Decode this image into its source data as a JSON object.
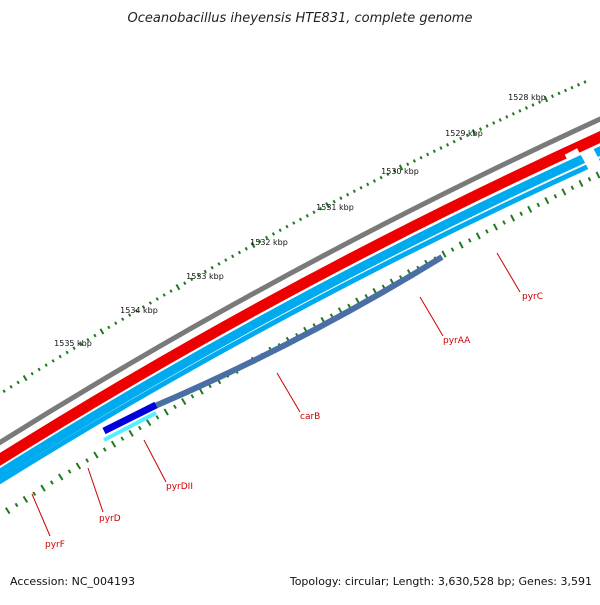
{
  "title": "Oceanobacillus iheyensis HTE831, complete genome",
  "accession_text": "Accession: NC_004193",
  "summary_text": "Topology: circular; Length: 3,630,528 bp; Genes: 3,591",
  "colors": {
    "backbone": "#7a7a7a",
    "gene_forward": "#ee0000",
    "gene_reverse": "#00aaee",
    "gene_reverse_highlight": "#55eeff",
    "operon_overlay": "#4a6fa5",
    "pyrDII_overlay": "#0000dd",
    "tick": "#1f7a1f",
    "gene_label": "#cc0000"
  },
  "map": {
    "kbp_ticks": [
      "1528 kbp",
      "1529 kbp",
      "1530 kbp",
      "1531 kbp",
      "1532 kbp",
      "1533 kbp",
      "1534 kbp",
      "1535 kbp"
    ],
    "genes": [
      {
        "name": "pyrC",
        "icon": "gene-label"
      },
      {
        "name": "pyrAA",
        "icon": "gene-label"
      },
      {
        "name": "carB",
        "icon": "gene-label"
      },
      {
        "name": "pyrDII",
        "icon": "gene-label"
      },
      {
        "name": "pyrD",
        "icon": "gene-label"
      },
      {
        "name": "pyrF",
        "icon": "gene-label"
      }
    ]
  }
}
